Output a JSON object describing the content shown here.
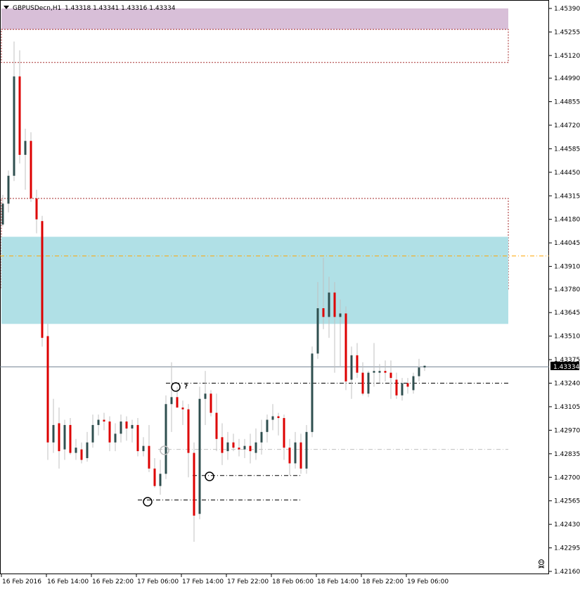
{
  "header": {
    "symbol": "GBPUSDecn,H1",
    "ohlc": "1.43318 1.43341 1.43316 1.43334"
  },
  "colors": {
    "bull_body": "#2f4f4f",
    "bear_body": "#dd0000",
    "wick": "#c0c0c0",
    "supply_zone": "#d8bfd8",
    "demand_zone": "#b0e0e6",
    "zone_border": "#a52a2a",
    "level_line": "#ffa500",
    "price_line": "#708090",
    "axis": "#000000"
  },
  "price_axis": {
    "labels": [
      "1.45390",
      "1.45255",
      "1.45120",
      "1.44990",
      "1.44855",
      "1.44720",
      "1.44585",
      "1.44450",
      "1.44315",
      "1.44180",
      "1.44045",
      "1.43910",
      "1.43780",
      "1.43645",
      "1.43510",
      "1.43375",
      "1.43240",
      "1.43105",
      "1.42970",
      "1.42835",
      "1.42700",
      "1.42565",
      "1.42430",
      "1.42295",
      "1.42160"
    ],
    "current_price": "1.43334"
  },
  "time_axis": {
    "labels": [
      "16 Feb 2016",
      "16 Feb 14:00",
      "16 Feb 22:00",
      "17 Feb 06:00",
      "17 Feb 14:00",
      "17 Feb 22:00",
      "18 Feb 06:00",
      "18 Feb 14:00",
      "18 Feb 22:00",
      "19 Feb 06:00"
    ]
  },
  "annotations": {
    "question_mark": "?"
  },
  "chart_data": {
    "type": "candlestick",
    "symbol": "GBPUSDecn",
    "timeframe": "H1",
    "y_range": [
      1.4216,
      1.4539
    ],
    "candles": [
      {
        "o": 1.4415,
        "h": 1.4432,
        "l": 1.4414,
        "c": 1.4427
      },
      {
        "o": 1.4427,
        "h": 1.4446,
        "l": 1.4422,
        "c": 1.4443
      },
      {
        "o": 1.4443,
        "h": 1.452,
        "l": 1.444,
        "c": 1.45
      },
      {
        "o": 1.45,
        "h": 1.4515,
        "l": 1.445,
        "c": 1.4455
      },
      {
        "o": 1.4455,
        "h": 1.447,
        "l": 1.4435,
        "c": 1.4463
      },
      {
        "o": 1.4463,
        "h": 1.4468,
        "l": 1.4428,
        "c": 1.443
      },
      {
        "o": 1.443,
        "h": 1.4435,
        "l": 1.441,
        "c": 1.4418
      },
      {
        "o": 1.4417,
        "h": 1.442,
        "l": 1.4345,
        "c": 1.435
      },
      {
        "o": 1.4351,
        "h": 1.4358,
        "l": 1.428,
        "c": 1.429
      },
      {
        "o": 1.429,
        "h": 1.4315,
        "l": 1.4284,
        "c": 1.43
      },
      {
        "o": 1.4301,
        "h": 1.431,
        "l": 1.4275,
        "c": 1.4285
      },
      {
        "o": 1.4286,
        "h": 1.4303,
        "l": 1.428,
        "c": 1.43
      },
      {
        "o": 1.43,
        "h": 1.4304,
        "l": 1.4283,
        "c": 1.4284
      },
      {
        "o": 1.4284,
        "h": 1.4292,
        "l": 1.428,
        "c": 1.4287
      },
      {
        "o": 1.4286,
        "h": 1.429,
        "l": 1.4278,
        "c": 1.428
      },
      {
        "o": 1.4281,
        "h": 1.4296,
        "l": 1.4279,
        "c": 1.429
      },
      {
        "o": 1.429,
        "h": 1.4306,
        "l": 1.4287,
        "c": 1.43
      },
      {
        "o": 1.43,
        "h": 1.4306,
        "l": 1.4294,
        "c": 1.4303
      },
      {
        "o": 1.4303,
        "h": 1.4307,
        "l": 1.4297,
        "c": 1.4302
      },
      {
        "o": 1.4302,
        "h": 1.4305,
        "l": 1.4285,
        "c": 1.429
      },
      {
        "o": 1.429,
        "h": 1.4301,
        "l": 1.4285,
        "c": 1.4295
      },
      {
        "o": 1.4295,
        "h": 1.4306,
        "l": 1.429,
        "c": 1.4302
      },
      {
        "o": 1.4302,
        "h": 1.4305,
        "l": 1.4291,
        "c": 1.4298
      },
      {
        "o": 1.4298,
        "h": 1.4303,
        "l": 1.429,
        "c": 1.43
      },
      {
        "o": 1.43,
        "h": 1.4304,
        "l": 1.4282,
        "c": 1.4285
      },
      {
        "o": 1.4285,
        "h": 1.4293,
        "l": 1.4282,
        "c": 1.4288
      },
      {
        "o": 1.4288,
        "h": 1.43,
        "l": 1.4273,
        "c": 1.4275
      },
      {
        "o": 1.4275,
        "h": 1.4281,
        "l": 1.4264,
        "c": 1.4265
      },
      {
        "o": 1.4265,
        "h": 1.428,
        "l": 1.426,
        "c": 1.4272
      },
      {
        "o": 1.4272,
        "h": 1.4317,
        "l": 1.4269,
        "c": 1.4312
      },
      {
        "o": 1.4312,
        "h": 1.4336,
        "l": 1.4296,
        "c": 1.4316
      },
      {
        "o": 1.4316,
        "h": 1.4322,
        "l": 1.431,
        "c": 1.431
      },
      {
        "o": 1.431,
        "h": 1.4314,
        "l": 1.43,
        "c": 1.4309
      },
      {
        "o": 1.4309,
        "h": 1.4312,
        "l": 1.427,
        "c": 1.4284
      },
      {
        "o": 1.4284,
        "h": 1.429,
        "l": 1.4233,
        "c": 1.4248
      },
      {
        "o": 1.4249,
        "h": 1.4322,
        "l": 1.4246,
        "c": 1.4315
      },
      {
        "o": 1.4315,
        "h": 1.4331,
        "l": 1.43,
        "c": 1.4318
      },
      {
        "o": 1.4318,
        "h": 1.432,
        "l": 1.4305,
        "c": 1.4307
      },
      {
        "o": 1.4307,
        "h": 1.4318,
        "l": 1.4285,
        "c": 1.4292
      },
      {
        "o": 1.4293,
        "h": 1.4301,
        "l": 1.4277,
        "c": 1.4284
      },
      {
        "o": 1.4285,
        "h": 1.4296,
        "l": 1.428,
        "c": 1.429
      },
      {
        "o": 1.429,
        "h": 1.4295,
        "l": 1.4285,
        "c": 1.4287
      },
      {
        "o": 1.4287,
        "h": 1.4292,
        "l": 1.4282,
        "c": 1.4286
      },
      {
        "o": 1.4286,
        "h": 1.4292,
        "l": 1.4281,
        "c": 1.4288
      },
      {
        "o": 1.4288,
        "h": 1.4295,
        "l": 1.4278,
        "c": 1.4285
      },
      {
        "o": 1.4284,
        "h": 1.4298,
        "l": 1.428,
        "c": 1.429
      },
      {
        "o": 1.429,
        "h": 1.4303,
        "l": 1.4283,
        "c": 1.4296
      },
      {
        "o": 1.4296,
        "h": 1.4306,
        "l": 1.429,
        "c": 1.4303
      },
      {
        "o": 1.4303,
        "h": 1.4312,
        "l": 1.4297,
        "c": 1.4305
      },
      {
        "o": 1.4305,
        "h": 1.4307,
        "l": 1.4294,
        "c": 1.4304
      },
      {
        "o": 1.4304,
        "h": 1.4306,
        "l": 1.428,
        "c": 1.4287
      },
      {
        "o": 1.4287,
        "h": 1.4292,
        "l": 1.4271,
        "c": 1.4278
      },
      {
        "o": 1.4278,
        "h": 1.4296,
        "l": 1.4275,
        "c": 1.429
      },
      {
        "o": 1.429,
        "h": 1.4295,
        "l": 1.4272,
        "c": 1.4275
      },
      {
        "o": 1.4275,
        "h": 1.43,
        "l": 1.4272,
        "c": 1.4296
      },
      {
        "o": 1.4296,
        "h": 1.4345,
        "l": 1.4293,
        "c": 1.4341
      },
      {
        "o": 1.4341,
        "h": 1.4382,
        "l": 1.4338,
        "c": 1.4367
      },
      {
        "o": 1.4367,
        "h": 1.4396,
        "l": 1.4355,
        "c": 1.4362
      },
      {
        "o": 1.4362,
        "h": 1.4385,
        "l": 1.435,
        "c": 1.4376
      },
      {
        "o": 1.4376,
        "h": 1.4382,
        "l": 1.433,
        "c": 1.4362
      },
      {
        "o": 1.4362,
        "h": 1.4372,
        "l": 1.4333,
        "c": 1.4364
      },
      {
        "o": 1.4364,
        "h": 1.4368,
        "l": 1.432,
        "c": 1.4325
      },
      {
        "o": 1.4326,
        "h": 1.4345,
        "l": 1.4315,
        "c": 1.434
      },
      {
        "o": 1.434,
        "h": 1.4347,
        "l": 1.4327,
        "c": 1.433
      },
      {
        "o": 1.433,
        "h": 1.4336,
        "l": 1.4317,
        "c": 1.4318
      },
      {
        "o": 1.4318,
        "h": 1.4331,
        "l": 1.4316,
        "c": 1.433
      },
      {
        "o": 1.433,
        "h": 1.4347,
        "l": 1.4322,
        "c": 1.4331
      },
      {
        "o": 1.433,
        "h": 1.4335,
        "l": 1.4324,
        "c": 1.4331
      },
      {
        "o": 1.4331,
        "h": 1.4337,
        "l": 1.4325,
        "c": 1.433
      },
      {
        "o": 1.433,
        "h": 1.4337,
        "l": 1.4315,
        "c": 1.4327
      },
      {
        "o": 1.4326,
        "h": 1.433,
        "l": 1.4315,
        "c": 1.4317
      },
      {
        "o": 1.4317,
        "h": 1.4327,
        "l": 1.4314,
        "c": 1.4324
      },
      {
        "o": 1.4324,
        "h": 1.4327,
        "l": 1.4318,
        "c": 1.4322
      },
      {
        "o": 1.432,
        "h": 1.433,
        "l": 1.4318,
        "c": 1.4328
      },
      {
        "o": 1.4328,
        "h": 1.4338,
        "l": 1.4325,
        "c": 1.4333
      },
      {
        "o": 1.4333,
        "h": 1.4334,
        "l": 1.4331,
        "c": 1.4334
      }
    ],
    "zones": [
      {
        "kind": "supply",
        "top": 1.4539,
        "bottom": 1.4527,
        "fill": true
      },
      {
        "kind": "supply",
        "top": 1.4527,
        "bottom": 1.4508,
        "fill": false
      },
      {
        "kind": "demand",
        "top": 1.443,
        "bottom": 1.4378,
        "fill": false
      },
      {
        "kind": "demand",
        "top": 1.4408,
        "bottom": 1.4358,
        "fill": true
      }
    ],
    "levels": [
      {
        "price": 1.4397,
        "style": "dash-dot",
        "color": "orange"
      },
      {
        "price": 1.4324,
        "style": "dash-dot",
        "color": "black"
      },
      {
        "price": 1.4286,
        "style": "dash-dot",
        "color": "silver"
      },
      {
        "price": 1.4271,
        "style": "dash-dot",
        "color": "black"
      },
      {
        "price": 1.4257,
        "style": "dash-dot",
        "color": "black"
      }
    ]
  }
}
